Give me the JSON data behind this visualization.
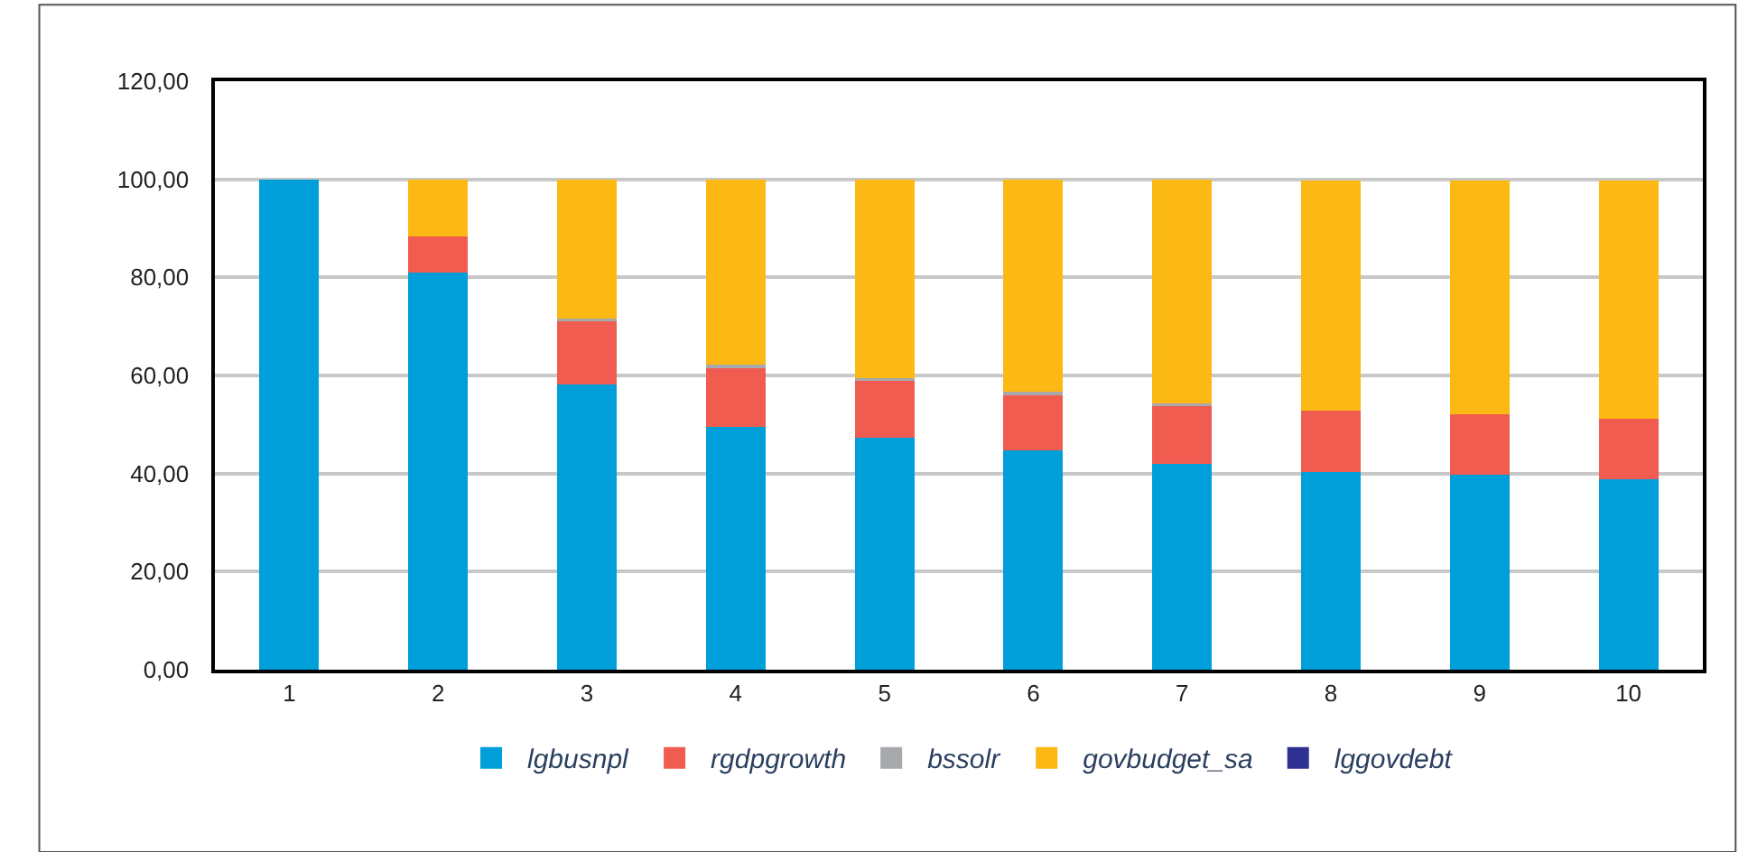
{
  "chart_data": {
    "type": "bar",
    "stacked": true,
    "categories": [
      "1",
      "2",
      "3",
      "4",
      "5",
      "6",
      "7",
      "8",
      "9",
      "10"
    ],
    "series": [
      {
        "name": "lgbusnpl",
        "color": "#009fda",
        "values": [
          100,
          81.0,
          58.1,
          49.5,
          47.3,
          44.7,
          42.0,
          40.4,
          39.7,
          38.8
        ]
      },
      {
        "name": "rgdpgrowth",
        "color": "#f15c50",
        "values": [
          0,
          7.3,
          13.3,
          12.3,
          11.8,
          11.6,
          11.9,
          12.4,
          12.3,
          12.3
        ]
      },
      {
        "name": "bssolr",
        "color": "#a7a9ac",
        "values": [
          0,
          0,
          0.2,
          0.4,
          0.4,
          0.4,
          0.4,
          null,
          null,
          null
        ]
      },
      {
        "name": "govbudget_sa",
        "color": "#fcb813",
        "values": [
          0,
          11.7,
          28.4,
          37.8,
          40.5,
          43.3,
          45.6,
          47.0,
          47.8,
          48.7
        ]
      },
      {
        "name": "lggovdebt",
        "color": "#2e3192",
        "values": [
          0,
          0,
          0,
          0,
          0,
          0,
          0,
          0,
          0,
          0
        ]
      }
    ],
    "ylim": [
      0,
      120
    ],
    "yticks": [
      {
        "value": 0,
        "label": "0,00"
      },
      {
        "value": 20,
        "label": "20,00"
      },
      {
        "value": 40,
        "label": "40,00"
      },
      {
        "value": 60,
        "label": "60,00"
      },
      {
        "value": 80,
        "label": "80,00"
      },
      {
        "value": 100,
        "label": "100,00"
      },
      {
        "value": 120,
        "label": "120,00"
      }
    ],
    "grid": "y",
    "legend": "bottom"
  }
}
